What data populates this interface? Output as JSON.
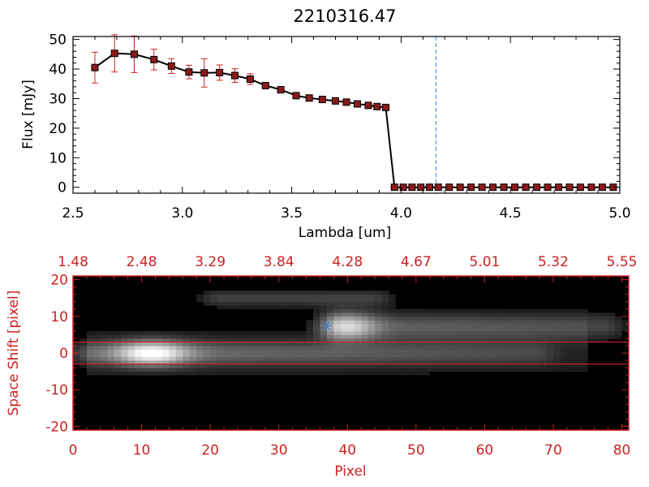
{
  "chart_data": [
    {
      "type": "line",
      "title": "2210316.47",
      "xlabel": "Lambda [um]",
      "ylabel": "Flux [mJy]",
      "xlim": [
        2.5,
        5.0
      ],
      "ylim": [
        -2,
        51
      ],
      "x_ticks": [
        "2.5",
        "3.0",
        "3.5",
        "4.0",
        "4.5",
        "5.0"
      ],
      "y_ticks": [
        "0",
        "10",
        "20",
        "30",
        "40",
        "50"
      ],
      "vline_x": 4.16,
      "colors": {
        "line": "#000000",
        "error": "#cc2222",
        "marker": "#8b1a1a",
        "vline": "#4a9ae0"
      },
      "series": [
        {
          "x": [
            2.6,
            2.69,
            2.78,
            2.87,
            2.95,
            3.03,
            3.1,
            3.17,
            3.24,
            3.31,
            3.38,
            3.45,
            3.52,
            3.58,
            3.64,
            3.7,
            3.75,
            3.8,
            3.85,
            3.89,
            3.93,
            3.97,
            4.01,
            4.05,
            4.09,
            4.13,
            4.17,
            4.22,
            4.27,
            4.32,
            4.37,
            4.42,
            4.47,
            4.52,
            4.57,
            4.62,
            4.67,
            4.72,
            4.77,
            4.82,
            4.87,
            4.92,
            4.97
          ],
          "y": [
            40.5,
            45.3,
            45.0,
            43.2,
            41.0,
            39.0,
            38.7,
            38.8,
            37.8,
            36.6,
            34.4,
            33.0,
            31.0,
            30.2,
            29.7,
            29.2,
            28.8,
            28.2,
            27.7,
            27.3,
            27.0,
            0,
            0,
            0,
            0,
            0,
            0,
            0,
            0,
            0,
            0,
            0,
            0,
            0,
            0,
            0,
            0,
            0,
            0,
            0,
            0,
            0,
            0
          ],
          "yerr": [
            5.2,
            6.3,
            6.2,
            3.5,
            2.5,
            2.3,
            4.8,
            2.6,
            2.3,
            1.8,
            0,
            0,
            0,
            0,
            0,
            0,
            0,
            0,
            0,
            0,
            0,
            0,
            0,
            0,
            0,
            0,
            0,
            0,
            0,
            0,
            0,
            0,
            0,
            0,
            0,
            0,
            0,
            0,
            0,
            0,
            0,
            0,
            0
          ]
        }
      ]
    },
    {
      "type": "heatmap",
      "xlabel": "Pixel",
      "ylabel": "Space Shift [pixel]",
      "xlim": [
        0,
        81
      ],
      "ylim": [
        -21,
        21
      ],
      "x_ticks": [
        "0",
        "10",
        "20",
        "30",
        "40",
        "50",
        "60",
        "70",
        "80"
      ],
      "y_ticks": [
        "-20",
        "-10",
        "0",
        "10",
        "20"
      ],
      "top_ticks": [
        "1.48",
        "2.48",
        "3.29",
        "3.84",
        "4.28",
        "4.67",
        "5.01",
        "5.32",
        "5.55"
      ],
      "hlines": [
        3,
        -3
      ],
      "colors": {
        "axis": "#cc2222",
        "hline": "#cc2222",
        "marker": "#3f80d8"
      },
      "marker": {
        "x": 37,
        "y": 7.5
      },
      "sources": [
        {
          "x0": 0,
          "x1": 70,
          "y": 0,
          "peak_x": 11.5,
          "width": 2.2
        },
        {
          "x0": 36,
          "x1": 80,
          "y": 7.3,
          "peak_x": 40,
          "width": 2.5
        },
        {
          "x0": 19,
          "x1": 46,
          "y": 15,
          "peak_x": 28,
          "width": 1.6
        }
      ]
    }
  ]
}
